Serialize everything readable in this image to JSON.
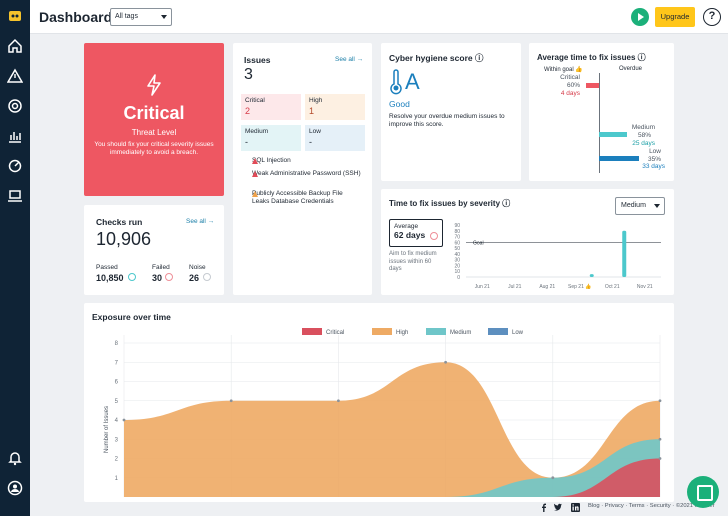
{
  "header": {
    "title": "Dashboard",
    "tags_select": "All tags",
    "upgrade_label": "Upgrade",
    "help_label": "?"
  },
  "sidebar": {
    "icons": [
      "logo-icon",
      "home-icon",
      "warning-icon",
      "target-icon",
      "chart-icon",
      "scan-icon",
      "laptop-icon",
      "bell-icon",
      "user-icon"
    ]
  },
  "critical_card": {
    "title": "Critical",
    "subtitle": "Threat Level",
    "message": "You should fix your critical severity issues immediately to avoid a breach."
  },
  "issues_card": {
    "title": "Issues",
    "count": "3",
    "see_all": "See all →",
    "severities": [
      {
        "label": "Critical",
        "value": "2",
        "bg": "#fde8ea",
        "color": "#d63b49"
      },
      {
        "label": "High",
        "value": "1",
        "bg": "#fdf0e2",
        "color": "#1d2631"
      },
      {
        "label": "Medium",
        "value": "-",
        "bg": "#e3f4f6",
        "color": "#1d2631"
      },
      {
        "label": "Low",
        "value": "-",
        "bg": "#e5f0f8",
        "color": "#1d2631"
      }
    ],
    "list": [
      "SQL Injection",
      "Weak Administrative Password (SSH)",
      "Publicly Accessible Backup File Leaks Database Credentials"
    ]
  },
  "checks_card": {
    "title": "Checks run",
    "see_all": "See all →",
    "total": "10,906",
    "passed_label": "Passed",
    "passed": "10,850",
    "failed_label": "Failed",
    "failed": "30",
    "noise_label": "Noise",
    "noise": "26"
  },
  "hygiene_card": {
    "title": "Cyber hygiene score ⓘ",
    "grade": "A",
    "grade_label": "Good",
    "message": "Resolve your overdue medium issues to improve this score."
  },
  "fix_time_card": {
    "title": "Average time to fix issues ⓘ",
    "within_goal": "Within goal 👍",
    "overdue": "Overdue",
    "rows": [
      {
        "label": "Critical",
        "pct": "60%",
        "days": "4 days",
        "color": "#ee5762"
      },
      {
        "label": "Medium",
        "pct": "58%",
        "days": "25 days",
        "color": "#4cc8cc"
      },
      {
        "label": "Low",
        "pct": "35%",
        "days": "33 days",
        "color": "#1b7fbd"
      }
    ]
  },
  "severity_time_card": {
    "title": "Time to fix issues by severity ⓘ",
    "select": "Medium",
    "avg_label": "Average",
    "avg_value": "62 days",
    "aim": "Aim to fix medium issues within 60 days",
    "goal_label": "Goal",
    "ylabel": "days",
    "yticks": [
      "90",
      "80",
      "70",
      "60",
      "50",
      "40",
      "30",
      "20",
      "10",
      "0"
    ],
    "xticks": [
      "Jun 21",
      "Jul 21",
      "Aug 21",
      "Sep 21 👍",
      "Oct 21",
      "Nov 21"
    ]
  },
  "exposure_card": {
    "title": "Exposure over time",
    "ylabel": "Number of Issues",
    "legend": [
      {
        "name": "Critical",
        "color": "#d9505e"
      },
      {
        "name": "High",
        "color": "#eeaa64"
      },
      {
        "name": "Medium",
        "color": "#6fc6c9"
      },
      {
        "name": "Low",
        "color": "#5d8fbf"
      }
    ],
    "yticks": [
      "8",
      "7",
      "6",
      "5",
      "4",
      "3",
      "2",
      "1"
    ]
  },
  "chart_data": [
    {
      "type": "bar",
      "title": "Time to fix issues by severity",
      "ylabel": "days",
      "ylim": [
        0,
        90
      ],
      "categories": [
        "Jun 21",
        "Jul 21",
        "Aug 21",
        "Sep 21",
        "Oct 21",
        "Nov 21"
      ],
      "series": [
        {
          "name": "Medium",
          "values": [
            0,
            0,
            0,
            5,
            80,
            0
          ]
        }
      ],
      "goal": 60
    },
    {
      "type": "area",
      "title": "Exposure over time",
      "ylabel": "Number of Issues",
      "ylim": [
        0,
        8
      ],
      "x": [
        0,
        1,
        2,
        3,
        4,
        5
      ],
      "series": [
        {
          "name": "High",
          "values": [
            4,
            5,
            5,
            7,
            1,
            5
          ]
        },
        {
          "name": "Medium",
          "values": [
            0,
            0,
            0,
            0,
            1,
            3
          ]
        },
        {
          "name": "Critical",
          "values": [
            0,
            0,
            0,
            0,
            0,
            2
          ]
        }
      ]
    }
  ],
  "footer": {
    "links": "Blog · Privacy · Terms · Security · ©2021 Intruder"
  }
}
